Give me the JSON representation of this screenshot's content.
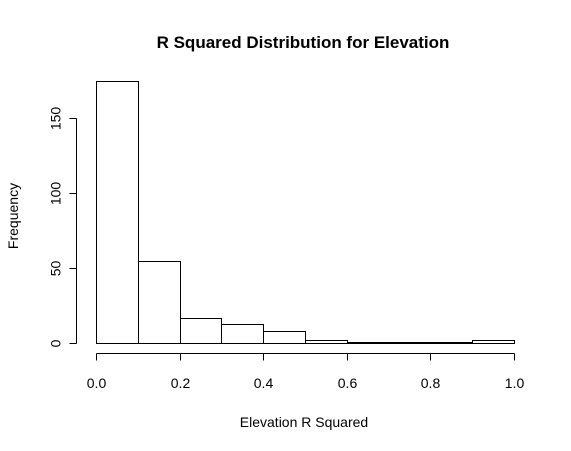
{
  "chart_data": {
    "type": "histogram",
    "title": "R Squared Distribution for Elevation",
    "xlabel": "Elevation R Squared",
    "ylabel": "Frequency",
    "bins": [
      {
        "from": 0.0,
        "to": 0.1,
        "count": 175
      },
      {
        "from": 0.1,
        "to": 0.2,
        "count": 55
      },
      {
        "from": 0.2,
        "to": 0.3,
        "count": 17
      },
      {
        "from": 0.3,
        "to": 0.4,
        "count": 13
      },
      {
        "from": 0.4,
        "to": 0.5,
        "count": 8
      },
      {
        "from": 0.5,
        "to": 0.6,
        "count": 2
      },
      {
        "from": 0.6,
        "to": 0.7,
        "count": 1
      },
      {
        "from": 0.7,
        "to": 0.8,
        "count": 1
      },
      {
        "from": 0.8,
        "to": 0.9,
        "count": 1
      },
      {
        "from": 0.9,
        "to": 1.0,
        "count": 2
      }
    ],
    "xlim": [
      0,
      1
    ],
    "ylim": [
      0,
      175
    ],
    "xticks": [
      {
        "value": 0.0,
        "label": "0.0"
      },
      {
        "value": 0.2,
        "label": "0.2"
      },
      {
        "value": 0.4,
        "label": "0.4"
      },
      {
        "value": 0.6,
        "label": "0.6"
      },
      {
        "value": 0.8,
        "label": "0.8"
      },
      {
        "value": 1.0,
        "label": "1.0"
      }
    ],
    "yticks": [
      {
        "value": 0,
        "label": "0"
      },
      {
        "value": 50,
        "label": "50"
      },
      {
        "value": 100,
        "label": "100"
      },
      {
        "value": 150,
        "label": "150"
      }
    ],
    "grid": false,
    "legend": "none"
  }
}
